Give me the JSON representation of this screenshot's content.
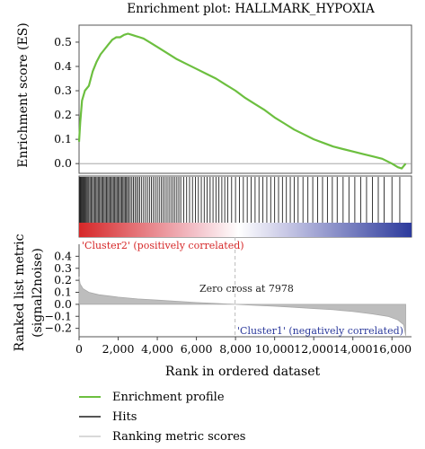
{
  "chart_data": {
    "type": "line",
    "title": "Enrichment plot: HALLMARK_HYPOXIA",
    "xlabel": "Rank in ordered dataset",
    "xlim": [
      0,
      17000
    ],
    "x_ticks": [
      "0",
      "2,000",
      "4,000",
      "6,000",
      "8,000",
      "10,000",
      "12,000",
      "14,000",
      "16,000"
    ],
    "es_panel": {
      "ylabel": "Enrichment score (ES)",
      "ylim": [
        -0.04,
        0.57
      ],
      "y_ticks": [
        "0.0",
        "0.1",
        "0.2",
        "0.3",
        "0.4",
        "0.5"
      ],
      "series": [
        {
          "name": "Enrichment profile",
          "color": "#6cbf3f",
          "x": [
            0,
            60,
            150,
            300,
            500,
            700,
            900,
            1100,
            1300,
            1500,
            1700,
            1900,
            2100,
            2300,
            2500,
            2700,
            2900,
            3100,
            3300,
            3600,
            4000,
            4500,
            5000,
            5500,
            6000,
            6500,
            7000,
            7500,
            8000,
            8500,
            9000,
            9500,
            10000,
            10500,
            11000,
            11500,
            12000,
            12500,
            13000,
            13500,
            14000,
            14500,
            15000,
            15500,
            16000,
            16300,
            16500,
            16700
          ],
          "values": [
            0.09,
            0.17,
            0.26,
            0.3,
            0.32,
            0.38,
            0.42,
            0.45,
            0.47,
            0.49,
            0.51,
            0.52,
            0.52,
            0.53,
            0.535,
            0.53,
            0.525,
            0.52,
            0.515,
            0.5,
            0.48,
            0.455,
            0.43,
            0.41,
            0.39,
            0.37,
            0.35,
            0.325,
            0.3,
            0.27,
            0.245,
            0.22,
            0.19,
            0.165,
            0.14,
            0.12,
            0.1,
            0.085,
            0.07,
            0.06,
            0.05,
            0.04,
            0.03,
            0.02,
            0.0,
            -0.015,
            -0.02,
            0.0
          ]
        }
      ]
    },
    "hits": {
      "name": "Hits",
      "color": "#222222",
      "positions": [
        20,
        50,
        90,
        130,
        170,
        210,
        250,
        300,
        350,
        400,
        450,
        500,
        560,
        620,
        680,
        740,
        800,
        860,
        920,
        980,
        1040,
        1100,
        1160,
        1220,
        1280,
        1340,
        1400,
        1460,
        1520,
        1580,
        1640,
        1700,
        1760,
        1820,
        1880,
        1940,
        2000,
        2060,
        2120,
        2180,
        2240,
        2300,
        2360,
        2420,
        2480,
        2540,
        2620,
        2700,
        2780,
        2860,
        2940,
        3020,
        3100,
        3200,
        3300,
        3400,
        3500,
        3600,
        3700,
        3800,
        3900,
        4000,
        4100,
        4200,
        4300,
        4400,
        4500,
        4600,
        4700,
        4800,
        4900,
        5000,
        5100,
        5200,
        5350,
        5500,
        5650,
        5800,
        5950,
        6100,
        6250,
        6400,
        6550,
        6700,
        6850,
        7000,
        7150,
        7300,
        7450,
        7600,
        7800,
        8000,
        8200,
        8400,
        8600,
        8800,
        9000,
        9200,
        9400,
        9600,
        9800,
        10000,
        10200,
        10400,
        10600,
        10800,
        11000,
        11200,
        11450,
        11700,
        11950,
        12200,
        12450,
        12700,
        12950,
        13200,
        13500,
        13800,
        14100,
        14400,
        14700,
        15000,
        15300,
        15600,
        16000,
        16400
      ]
    },
    "gradient_bar": {
      "left_label": "'Cluster2' (positively correlated)",
      "right_label": "'Cluster1' (negatively correlated)",
      "left_color": "#d62728",
      "right_color": "#2c3a9c"
    },
    "metric_panel": {
      "ylabel": "Ranked list metric (signal2noise)",
      "ylim": [
        -0.27,
        0.5
      ],
      "y_ticks": [
        "−0.2",
        "−0.1",
        "0.0",
        "0.1",
        "0.2",
        "0.3",
        "0.4"
      ],
      "color": "#bdbdbd",
      "series": {
        "name": "Ranking metric scores",
        "x": [
          0,
          50,
          200,
          500,
          1000,
          2000,
          3000,
          4000,
          5000,
          6000,
          7000,
          7978,
          9000,
          10000,
          11000,
          12000,
          13000,
          14000,
          15000,
          15800,
          16300,
          16600,
          16700
        ],
        "values": [
          0.23,
          0.17,
          0.13,
          0.1,
          0.08,
          0.06,
          0.045,
          0.035,
          0.025,
          0.015,
          0.007,
          0.0,
          -0.008,
          -0.016,
          -0.025,
          -0.035,
          -0.045,
          -0.06,
          -0.08,
          -0.1,
          -0.13,
          -0.17,
          -0.26
        ]
      },
      "zero_cross_label": "Zero cross at 7978",
      "zero_cross_x": 7978
    },
    "legend": [
      {
        "label": "Enrichment profile",
        "color": "#6cbf3f"
      },
      {
        "label": "Hits",
        "color": "#555555"
      },
      {
        "label": "Ranking metric scores",
        "color": "#d9d9d9"
      }
    ]
  }
}
